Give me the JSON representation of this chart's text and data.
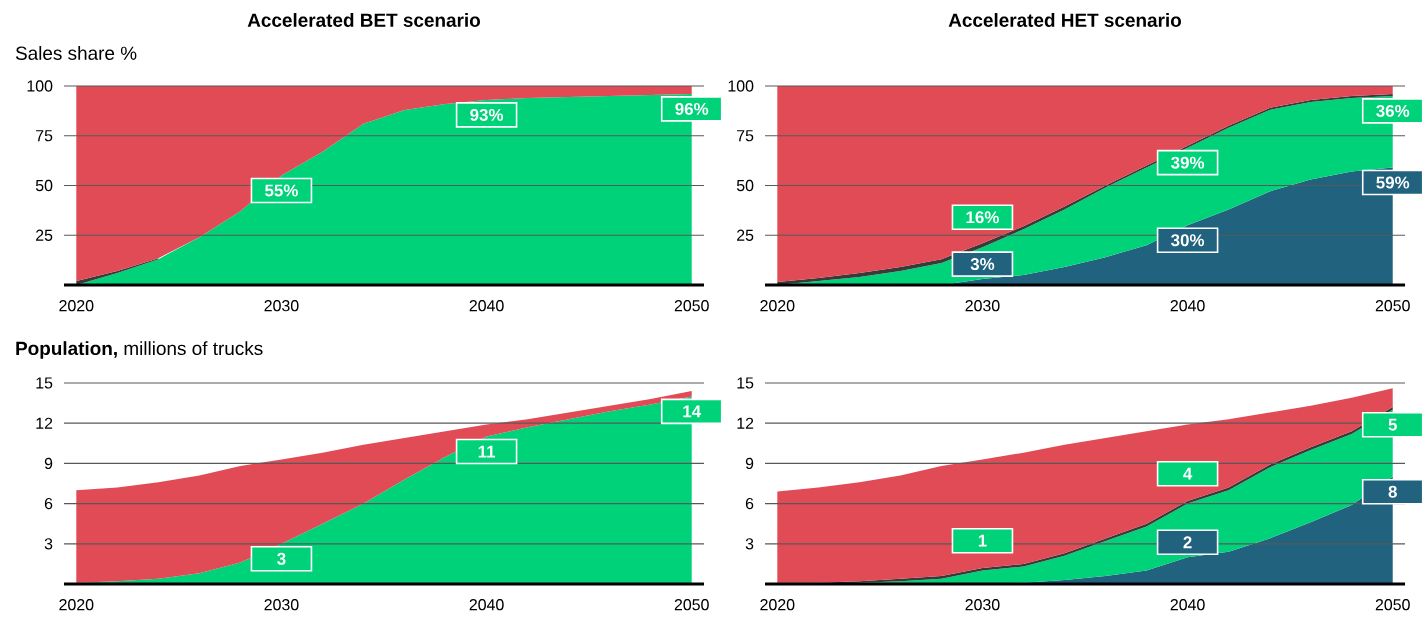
{
  "chart_data": [
    {
      "type": "area",
      "stacked": true,
      "title": "Accelerated BET scenario",
      "ylabel": "Sales share %",
      "x": [
        2020,
        2022,
        2024,
        2026,
        2028,
        2030,
        2032,
        2034,
        2036,
        2038,
        2040,
        2042,
        2044,
        2046,
        2048,
        2050
      ],
      "xlim": [
        2019.4,
        2050.6
      ],
      "xticks": [
        2020,
        2030,
        2040,
        2050
      ],
      "ylim": [
        0,
        100
      ],
      "yticks": [
        25,
        50,
        75,
        100
      ],
      "grid": "y",
      "series": [
        {
          "color": "#00d27a",
          "values": [
            0,
            6,
            13,
            24,
            37,
            55,
            67,
            81,
            88,
            91,
            93,
            94,
            94.5,
            95,
            95.5,
            96
          ],
          "value_labels": [
            null,
            null,
            null,
            null,
            null,
            "55%",
            null,
            null,
            null,
            null,
            "93%",
            null,
            null,
            null,
            null,
            "96%"
          ]
        },
        {
          "color": "#3a3a3a",
          "values": [
            2,
            1,
            0.5,
            null,
            null,
            null,
            null,
            null,
            null,
            null,
            null,
            null,
            null,
            null,
            null,
            null
          ]
        },
        {
          "color": "#e04b55",
          "values": [
            98,
            93,
            86.5,
            76,
            63,
            45,
            33,
            19,
            12,
            9,
            7,
            6,
            5.5,
            5,
            4.5,
            4
          ]
        }
      ]
    },
    {
      "type": "area",
      "stacked": true,
      "title": "Accelerated HET scenario",
      "x": [
        2020,
        2022,
        2024,
        2026,
        2028,
        2030,
        2032,
        2034,
        2036,
        2038,
        2040,
        2042,
        2044,
        2046,
        2048,
        2050
      ],
      "xlim": [
        2019.4,
        2050.6
      ],
      "xticks": [
        2020,
        2030,
        2040,
        2050
      ],
      "ylim": [
        0,
        100
      ],
      "yticks": [
        25,
        50,
        75,
        100
      ],
      "grid": "y",
      "series": [
        {
          "color": "#21627f",
          "values": [
            0,
            0,
            0,
            0,
            0,
            3,
            5,
            9,
            14,
            20,
            30,
            38,
            47,
            53,
            57,
            59
          ],
          "value_labels": [
            null,
            null,
            null,
            null,
            null,
            "3%",
            null,
            null,
            null,
            null,
            "30%",
            null,
            null,
            null,
            null,
            "59%"
          ]
        },
        {
          "color": "#00d27a",
          "values": [
            0,
            2,
            4,
            7,
            11,
            16,
            23,
            29,
            35,
            39,
            39,
            41,
            41,
            39,
            37,
            36
          ],
          "value_labels": [
            null,
            null,
            null,
            null,
            null,
            "16%",
            null,
            null,
            null,
            null,
            "39%",
            null,
            null,
            null,
            null,
            "36%"
          ]
        },
        {
          "color": "#3a3a3a",
          "values": [
            1.5,
            1.5,
            2,
            2,
            2,
            2,
            1.5,
            1.5,
            1,
            1,
            1,
            1,
            1,
            1,
            1,
            1
          ]
        },
        {
          "color": "#e04b55",
          "values": [
            98.5,
            96.5,
            94,
            91,
            87,
            79,
            70.5,
            60.5,
            50,
            40,
            30,
            20,
            11,
            7,
            5,
            4
          ]
        }
      ]
    },
    {
      "type": "area",
      "stacked": true,
      "ylabel": "**Population,** millions of trucks",
      "x": [
        2020,
        2022,
        2024,
        2026,
        2028,
        2030,
        2032,
        2034,
        2036,
        2038,
        2040,
        2042,
        2044,
        2046,
        2048,
        2050
      ],
      "xlim": [
        2019.4,
        2050.6
      ],
      "xticks": [
        2020,
        2030,
        2040,
        2050
      ],
      "ylim": [
        0,
        15
      ],
      "yticks": [
        3,
        6,
        9,
        12,
        15
      ],
      "grid": "y",
      "series": [
        {
          "color": "#00d27a",
          "values": [
            0.1,
            0.2,
            0.4,
            0.8,
            1.6,
            3,
            4.5,
            6,
            7.8,
            9.5,
            11,
            11.7,
            12.3,
            12.9,
            13.4,
            14
          ],
          "value_labels": [
            null,
            null,
            null,
            null,
            null,
            "3",
            null,
            null,
            null,
            null,
            "11",
            null,
            null,
            null,
            null,
            "14"
          ]
        },
        {
          "color": "#e04b55",
          "values": [
            6.9,
            7.0,
            7.2,
            7.3,
            7.2,
            6.3,
            5.3,
            4.4,
            3.1,
            1.9,
            0.9,
            0.6,
            0.5,
            0.4,
            0.4,
            0.4
          ]
        }
      ]
    },
    {
      "type": "area",
      "stacked": true,
      "x": [
        2020,
        2022,
        2024,
        2026,
        2028,
        2030,
        2032,
        2034,
        2036,
        2038,
        2040,
        2042,
        2044,
        2046,
        2048,
        2050
      ],
      "xlim": [
        2019.4,
        2050.6
      ],
      "xticks": [
        2020,
        2030,
        2040,
        2050
      ],
      "ylim": [
        0,
        15
      ],
      "yticks": [
        3,
        6,
        9,
        12,
        15
      ],
      "grid": "y",
      "series": [
        {
          "color": "#21627f",
          "values": [
            0,
            0,
            0,
            0,
            0,
            0,
            0.1,
            0.3,
            0.6,
            1.0,
            2,
            2.4,
            3.4,
            4.6,
            5.9,
            8
          ],
          "value_labels": [
            null,
            null,
            null,
            null,
            null,
            null,
            null,
            null,
            null,
            null,
            "2",
            null,
            null,
            null,
            null,
            "8"
          ]
        },
        {
          "color": "#00d27a",
          "values": [
            0,
            0,
            0.1,
            0.2,
            0.4,
            1,
            1.2,
            1.8,
            2.6,
            3.3,
            4,
            4.6,
            5.3,
            5.4,
            5.3,
            5
          ],
          "value_labels": [
            null,
            null,
            null,
            null,
            null,
            "1",
            null,
            null,
            null,
            null,
            "4",
            null,
            null,
            null,
            null,
            "5"
          ]
        },
        {
          "color": "#3a3a3a",
          "values": [
            0.1,
            0.1,
            0.1,
            0.2,
            0.2,
            0.2,
            0.2,
            0.2,
            0.2,
            0.2,
            0.2,
            0.2,
            0.2,
            0.2,
            0.2,
            0.2
          ]
        },
        {
          "color": "#e04b55",
          "values": [
            6.8,
            7.1,
            7.4,
            7.7,
            8.2,
            8.1,
            8.3,
            8.1,
            7.5,
            6.9,
            5.7,
            5.1,
            3.9,
            3.1,
            2.5,
            1.4
          ]
        }
      ]
    }
  ]
}
